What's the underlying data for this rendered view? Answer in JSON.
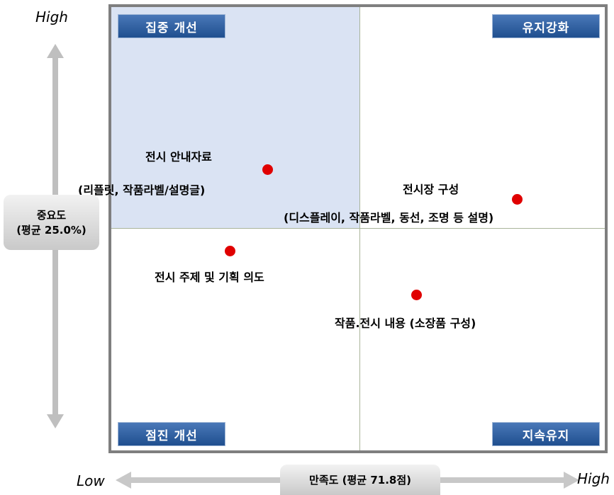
{
  "y_axis": {
    "high": "High",
    "title": "중요도",
    "note": "(평균 25.0%)"
  },
  "x_axis": {
    "low": "Low",
    "high": "High",
    "title": "만족도 (평균 71.8점)"
  },
  "quadrants": {
    "top_left": "집중 개선",
    "top_right": "유지강화",
    "bottom_left": "점진 개선",
    "bottom_right": "지속유지"
  },
  "items": [
    {
      "line1": "전시 안내자료",
      "line2": "(리플릿, 작품라벨/설명글)"
    },
    {
      "line1": "전시장 구성",
      "line2": "(디스플레이, 작품라벨, 동선, 조명 등 설명)"
    },
    {
      "line1": "전시 주제 및 기획 의도"
    },
    {
      "line1": "작품.전시 내용 (소장품 구성)"
    }
  ]
}
